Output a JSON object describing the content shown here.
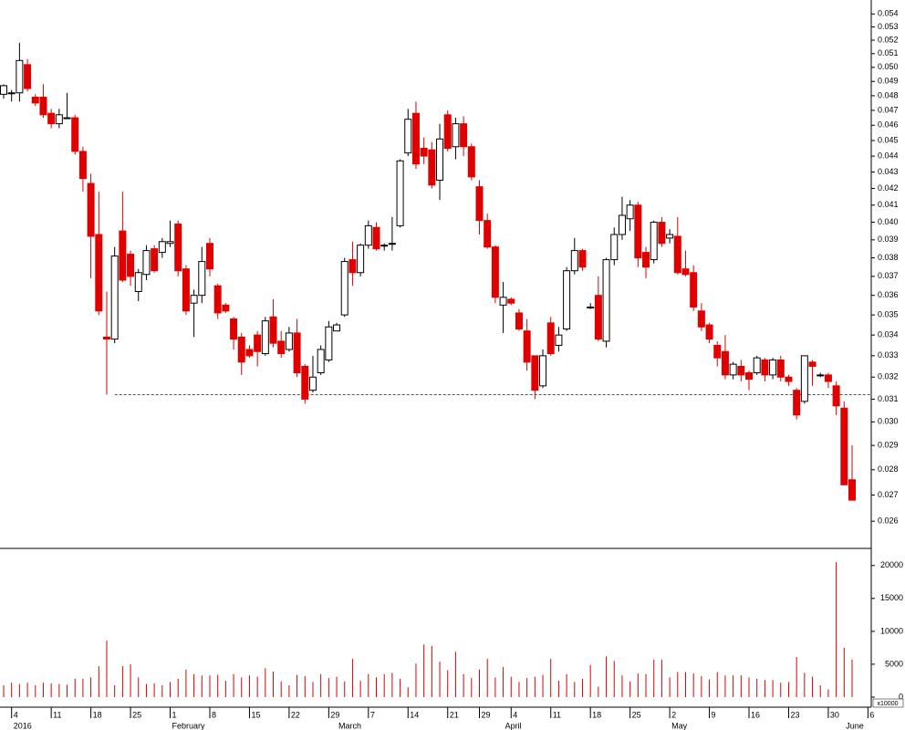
{
  "chart_data": {
    "type": "candlestick",
    "log_scale": true,
    "ylim": [
      0.025,
      0.0551
    ],
    "yticks": [
      0.026,
      0.027,
      0.028,
      0.029,
      {
        "value": 0.03,
        "label": "0.030"
      },
      0.031,
      0.032,
      0.033,
      0.034,
      0.035,
      0.036,
      0.037,
      0.038,
      0.039,
      {
        "value": 0.04,
        "label": "0.040"
      },
      0.041,
      0.042,
      0.043,
      0.044,
      0.045,
      0.046,
      0.047,
      0.048,
      0.049,
      {
        "value": 0.05,
        "label": "0.050"
      },
      0.051,
      0.052,
      0.053,
      0.054
    ],
    "up_color": "#ffffff",
    "down_color": "#e00000",
    "support_line": 0.0312,
    "support_start": 14,
    "ohlc": [
      [
        0.0481,
        0.0488,
        0.0478,
        0.0487
      ],
      [
        0.0482,
        0.0484,
        0.0476,
        0.0482
      ],
      [
        0.0482,
        0.0518,
        0.0476,
        0.0505
      ],
      [
        0.0502,
        0.0506,
        0.0483,
        0.0485
      ],
      [
        0.0479,
        0.0481,
        0.0473,
        0.0475
      ],
      [
        0.0479,
        0.0488,
        0.0465,
        0.0467
      ],
      [
        0.0468,
        0.0471,
        0.0458,
        0.0461
      ],
      [
        0.0461,
        0.0471,
        0.0458,
        0.0467
      ],
      [
        0.0465,
        0.0482,
        0.0465,
        0.0465
      ],
      [
        0.0465,
        0.0467,
        0.0441,
        0.0443
      ],
      [
        0.0443,
        0.0446,
        0.0418,
        0.0426
      ],
      [
        0.0423,
        0.0429,
        0.0369,
        0.0392
      ],
      [
        0.0393,
        0.0418,
        0.035,
        0.0352
      ],
      [
        0.0339,
        0.0362,
        0.0312,
        0.0338
      ],
      [
        0.0338,
        0.0386,
        0.0336,
        0.0381
      ],
      [
        0.0395,
        0.0418,
        0.0367,
        0.0368
      ],
      [
        0.0382,
        0.0384,
        0.0365,
        0.037
      ],
      [
        0.0362,
        0.0374,
        0.0357,
        0.0372
      ],
      [
        0.0371,
        0.0387,
        0.0368,
        0.0384
      ],
      [
        0.0385,
        0.0387,
        0.0372,
        0.0373
      ],
      [
        0.0383,
        0.0391,
        0.038,
        0.0389
      ],
      [
        0.0388,
        0.0401,
        0.0386,
        0.0389
      ],
      [
        0.0399,
        0.0401,
        0.037,
        0.0373
      ],
      [
        0.0374,
        0.0376,
        0.035,
        0.0352
      ],
      [
        0.0356,
        0.0363,
        0.0339,
        0.036
      ],
      [
        0.036,
        0.0386,
        0.0356,
        0.0378
      ],
      [
        0.0388,
        0.0391,
        0.037,
        0.0374
      ],
      [
        0.0365,
        0.0366,
        0.0348,
        0.0351
      ],
      [
        0.0355,
        0.0356,
        0.0351,
        0.0352
      ],
      [
        0.0348,
        0.0349,
        0.0333,
        0.0338
      ],
      [
        0.0339,
        0.0341,
        0.0321,
        0.0327
      ],
      [
        0.0333,
        0.0335,
        0.0329,
        0.033
      ],
      [
        0.034,
        0.0342,
        0.0325,
        0.0332
      ],
      [
        0.0331,
        0.0349,
        0.033,
        0.0347
      ],
      [
        0.0349,
        0.0358,
        0.0334,
        0.0336
      ],
      [
        0.0337,
        0.0342,
        0.0329,
        0.0331
      ],
      [
        0.0333,
        0.0344,
        0.0332,
        0.0341
      ],
      [
        0.0341,
        0.0348,
        0.032,
        0.0322
      ],
      [
        0.0325,
        0.0326,
        0.0308,
        0.031
      ],
      [
        0.0314,
        0.033,
        0.0313,
        0.032
      ],
      [
        0.0322,
        0.0335,
        0.0321,
        0.0333
      ],
      [
        0.0328,
        0.0347,
        0.0327,
        0.0344
      ],
      [
        0.0342,
        0.0346,
        0.0342,
        0.0345
      ],
      [
        0.035,
        0.038,
        0.0349,
        0.0378
      ],
      [
        0.0379,
        0.0389,
        0.0365,
        0.0372
      ],
      [
        0.0372,
        0.0388,
        0.037,
        0.0387
      ],
      [
        0.0387,
        0.0401,
        0.0385,
        0.0398
      ],
      [
        0.0397,
        0.04,
        0.0384,
        0.0385
      ],
      [
        0.0387,
        0.0388,
        0.0384,
        0.0387
      ],
      [
        0.0388,
        0.0403,
        0.0384,
        0.0388
      ],
      [
        0.0398,
        0.0438,
        0.0397,
        0.0437
      ],
      [
        0.0442,
        0.0471,
        0.044,
        0.0464
      ],
      [
        0.0468,
        0.0476,
        0.0432,
        0.0435
      ],
      [
        0.0445,
        0.0452,
        0.0435,
        0.044
      ],
      [
        0.0444,
        0.0449,
        0.042,
        0.0422
      ],
      [
        0.0425,
        0.0461,
        0.0413,
        0.0451
      ],
      [
        0.0467,
        0.047,
        0.0443,
        0.0445
      ],
      [
        0.0446,
        0.0465,
        0.0438,
        0.0461
      ],
      [
        0.0461,
        0.0466,
        0.044,
        0.0446
      ],
      [
        0.0446,
        0.0448,
        0.0425,
        0.0427
      ],
      [
        0.0421,
        0.0425,
        0.0393,
        0.0401
      ],
      [
        0.0401,
        0.0405,
        0.0385,
        0.0386
      ],
      [
        0.0386,
        0.0387,
        0.0356,
        0.0359
      ],
      [
        0.0355,
        0.0367,
        0.0341,
        0.0359
      ],
      [
        0.0358,
        0.0359,
        0.0355,
        0.0356
      ],
      [
        0.0351,
        0.0353,
        0.0342,
        0.0343
      ],
      [
        0.0342,
        0.0348,
        0.0323,
        0.0327
      ],
      [
        0.033,
        0.033,
        0.031,
        0.0314
      ],
      [
        0.0316,
        0.0333,
        0.0315,
        0.033
      ],
      [
        0.0346,
        0.0349,
        0.033,
        0.0331
      ],
      [
        0.0335,
        0.0344,
        0.0332,
        0.034
      ],
      [
        0.0343,
        0.0375,
        0.0342,
        0.0373
      ],
      [
        0.0373,
        0.0391,
        0.0371,
        0.0384
      ],
      [
        0.0384,
        0.0385,
        0.0373,
        0.0375
      ],
      [
        0.0354,
        0.0356,
        0.0353,
        0.0354
      ],
      [
        0.036,
        0.037,
        0.0337,
        0.0338
      ],
      [
        0.0337,
        0.038,
        0.0334,
        0.0379
      ],
      [
        0.0379,
        0.0397,
        0.0376,
        0.0393
      ],
      [
        0.0393,
        0.0415,
        0.039,
        0.0404
      ],
      [
        0.0402,
        0.0413,
        0.0395,
        0.041
      ],
      [
        0.041,
        0.0412,
        0.0375,
        0.038
      ],
      [
        0.0383,
        0.0386,
        0.0369,
        0.0375
      ],
      [
        0.0379,
        0.0401,
        0.0377,
        0.04
      ],
      [
        0.04,
        0.0403,
        0.0386,
        0.0388
      ],
      [
        0.0391,
        0.0396,
        0.0388,
        0.0393
      ],
      [
        0.0392,
        0.0403,
        0.0371,
        0.0372
      ],
      [
        0.0374,
        0.0384,
        0.037,
        0.0371
      ],
      [
        0.0372,
        0.0376,
        0.0352,
        0.0354
      ],
      [
        0.0352,
        0.0356,
        0.0342,
        0.0344
      ],
      [
        0.0345,
        0.0346,
        0.0336,
        0.0338
      ],
      [
        0.0335,
        0.0337,
        0.0325,
        0.0329
      ],
      [
        0.0332,
        0.034,
        0.0319,
        0.0321
      ],
      [
        0.0321,
        0.0327,
        0.0319,
        0.0326
      ],
      [
        0.0325,
        0.0328,
        0.0318,
        0.0321
      ],
      [
        0.0322,
        0.0323,
        0.0314,
        0.0319
      ],
      [
        0.0322,
        0.033,
        0.0321,
        0.0329
      ],
      [
        0.0328,
        0.0329,
        0.0318,
        0.0321
      ],
      [
        0.0321,
        0.0329,
        0.0319,
        0.0328
      ],
      [
        0.0328,
        0.033,
        0.0318,
        0.032
      ],
      [
        0.032,
        0.0321,
        0.0316,
        0.0318
      ],
      [
        0.0314,
        0.0315,
        0.0301,
        0.0303
      ],
      [
        0.0309,
        0.033,
        0.0308,
        0.033
      ],
      [
        0.0327,
        0.0328,
        0.0316,
        0.0325
      ],
      [
        0.0321,
        0.0322,
        0.032,
        0.0321
      ],
      [
        0.0321,
        0.0322,
        0.0315,
        0.0318
      ],
      [
        0.0316,
        0.0318,
        0.0303,
        0.0307
      ],
      [
        0.0306,
        0.0309,
        0.0274,
        0.0274
      ],
      [
        0.0276,
        0.029,
        0.0268,
        0.0268
      ]
    ],
    "volume": [
      1800,
      2200,
      2000,
      2200,
      1800,
      2200,
      2100,
      2000,
      1900,
      2800,
      2800,
      3000,
      4700,
      8600,
      1800,
      4700,
      5000,
      3000,
      2000,
      2100,
      1800,
      2300,
      2800,
      4200,
      3500,
      3300,
      3300,
      3400,
      2500,
      3500,
      3000,
      3300,
      3100,
      4400,
      3900,
      2400,
      1800,
      3400,
      3200,
      2300,
      3500,
      2900,
      3100,
      2400,
      5800,
      2500,
      3500,
      3000,
      3500,
      3700,
      2800,
      1500,
      5100,
      8000,
      7800,
      5400,
      4100,
      6900,
      3500,
      2900,
      4200,
      5800,
      3000,
      4600,
      3100,
      2300,
      2900,
      3100,
      3400,
      5800,
      2500,
      3500,
      2300,
      2800,
      4900,
      1600,
      6200,
      5500,
      3300,
      2400,
      3600,
      3500,
      5700,
      5700,
      3000,
      3800,
      3800,
      3600,
      3200,
      2700,
      3800,
      3300,
      3300,
      3300,
      3000,
      2800,
      2600,
      2600,
      2200,
      2300,
      6100,
      3700,
      3100,
      1800,
      1200,
      20500,
      7500,
      5700
    ],
    "volume_color": "#e00000",
    "volume_ylim": [
      0,
      22600
    ],
    "volume_ticks": [
      0,
      5000,
      10000,
      15000,
      20000
    ],
    "volume_unit_label": "x10000",
    "xticks": [
      {
        "value": 1,
        "label": "4"
      },
      {
        "value": 6,
        "label": "11"
      },
      {
        "value": 11,
        "label": "18"
      },
      {
        "value": 16,
        "label": "25"
      },
      {
        "value": 21,
        "label": "1"
      },
      {
        "value": 26,
        "label": "8"
      },
      {
        "value": 31,
        "label": "15"
      },
      {
        "value": 36,
        "label": "22"
      },
      {
        "value": 41,
        "label": "29"
      },
      {
        "value": 46,
        "label": "7"
      },
      {
        "value": 51,
        "label": "14"
      },
      {
        "value": 56,
        "label": "21"
      },
      {
        "value": 60,
        "label": "29"
      },
      {
        "value": 64,
        "label": "4"
      },
      {
        "value": 69,
        "label": "11"
      },
      {
        "value": 74,
        "label": "18"
      },
      {
        "value": 79,
        "label": "25"
      },
      {
        "value": 84,
        "label": "2"
      },
      {
        "value": 89,
        "label": "9"
      },
      {
        "value": 94,
        "label": "16"
      },
      {
        "value": 99,
        "label": "23"
      },
      {
        "value": 104,
        "label": "30"
      },
      {
        "value": 109,
        "label": "6"
      }
    ],
    "month_labels": [
      {
        "value": 1,
        "label": "2016"
      },
      {
        "value": 21,
        "label": "February"
      },
      {
        "value": 42,
        "label": "March"
      },
      {
        "value": 63,
        "label": "April"
      },
      {
        "value": 84,
        "label": "May"
      },
      {
        "value": 106,
        "label": "June"
      }
    ]
  }
}
